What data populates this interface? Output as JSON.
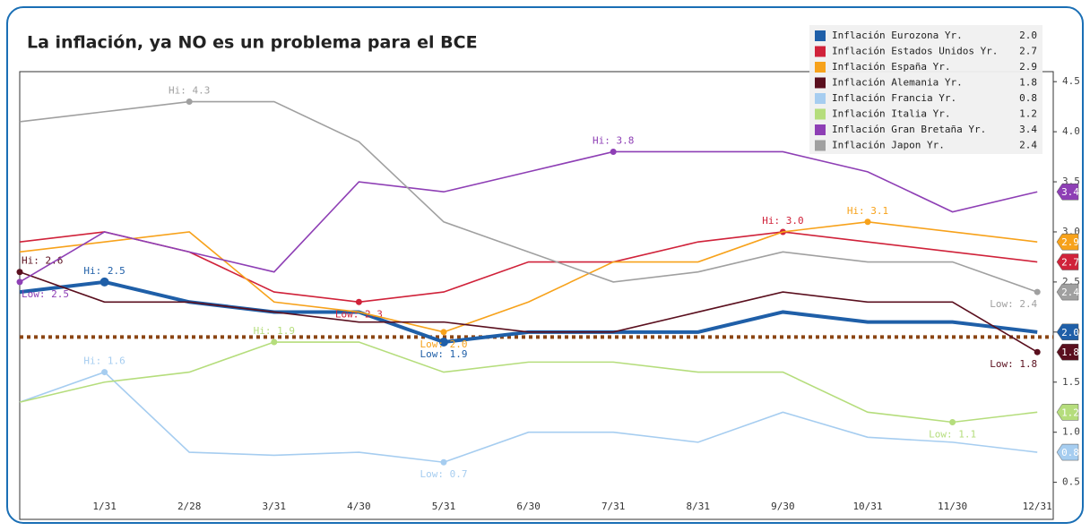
{
  "chart_data": {
    "type": "line",
    "title": "La inflación, ya NO es un problema para el BCE",
    "categories": [
      null,
      "1/31",
      "2/28",
      "3/31",
      "4/30",
      "5/31",
      "6/30",
      "7/31",
      "8/31",
      "9/30",
      "10/31",
      "11/30",
      "12/31"
    ],
    "ylim": [
      0.13,
      4.6
    ],
    "yticks": [
      0.5,
      {
        "value": 1,
        "label": "1.0"
      },
      1.5,
      {
        "value": 2,
        "label": "2.0"
      },
      2.5,
      {
        "value": 3,
        "label": "3.0"
      },
      3.5,
      {
        "value": 4,
        "label": "4.0"
      },
      4.5
    ],
    "target_line": {
      "value": 1.95,
      "color": "#8b4513"
    },
    "legend": "top-right",
    "series": [
      {
        "name": "Inflación Eurozona Yr.",
        "color": "#1f5fa8",
        "values": [
          2.4,
          2.5,
          2.3,
          2.2,
          2.2,
          1.9,
          2.0,
          2.0,
          2.0,
          2.2,
          2.1,
          2.1,
          2.0
        ],
        "value_labels": [
          null,
          "Hi: 2.5",
          null,
          null,
          null,
          "Low: 1.9",
          null,
          null,
          null,
          null,
          null,
          null,
          null
        ],
        "last_label": "2.0"
      },
      {
        "name": "Inflación Estados Unidos Yr.",
        "color": "#d0223a",
        "values": [
          2.9,
          3.0,
          2.8,
          2.4,
          2.3,
          2.4,
          2.7,
          2.7,
          2.9,
          3.0,
          2.9,
          2.8,
          2.7
        ],
        "value_labels": [
          null,
          null,
          null,
          null,
          "Low: 2.3",
          null,
          null,
          null,
          null,
          "Hi: 3.0",
          null,
          null,
          null
        ],
        "last_label": "2.7"
      },
      {
        "name": "Inflación España Yr.",
        "color": "#f7a21b",
        "values": [
          2.8,
          2.9,
          3.0,
          2.3,
          2.2,
          2.0,
          2.3,
          2.7,
          2.7,
          3.0,
          3.1,
          3.0,
          2.9
        ],
        "value_labels": [
          null,
          null,
          null,
          null,
          null,
          "Low: 2.0",
          null,
          null,
          null,
          null,
          "Hi: 3.1",
          null,
          null
        ],
        "last_label": "2.9"
      },
      {
        "name": "Inflación Alemania Yr.",
        "color": "#5a0f1e",
        "values": [
          2.6,
          2.3,
          2.3,
          2.2,
          2.1,
          2.1,
          2.0,
          2.0,
          2.2,
          2.4,
          2.3,
          2.3,
          1.8
        ],
        "value_labels": [
          "Hi: 2.6",
          null,
          null,
          null,
          null,
          null,
          null,
          null,
          null,
          null,
          null,
          null,
          "Low: 1.8"
        ],
        "last_label": "1.8"
      },
      {
        "name": "Inflación Francia Yr.",
        "color": "#a6cdf0",
        "values": [
          1.3,
          1.6,
          0.8,
          0.77,
          0.8,
          0.7,
          1.0,
          1.0,
          0.9,
          1.2,
          0.95,
          0.9,
          0.8
        ],
        "value_labels": [
          null,
          "Hi: 1.6",
          null,
          null,
          null,
          "Low: 0.7",
          null,
          null,
          null,
          null,
          null,
          null,
          null
        ],
        "last_label": "0.8"
      },
      {
        "name": "Inflación Italia Yr.",
        "color": "#b5dd7c",
        "values": [
          1.3,
          1.5,
          1.6,
          1.9,
          1.9,
          1.6,
          1.7,
          1.7,
          1.6,
          1.6,
          1.2,
          1.1,
          1.2
        ],
        "value_labels": [
          null,
          null,
          null,
          "Hi: 1.9",
          null,
          null,
          null,
          null,
          null,
          null,
          null,
          "Low: 1.1",
          null
        ],
        "last_label": "1.2"
      },
      {
        "name": "Inflación Gran Bretaña Yr.",
        "color": "#8e3fb5",
        "values": [
          2.5,
          3.0,
          2.8,
          2.6,
          3.5,
          3.4,
          3.6,
          3.8,
          3.8,
          3.8,
          3.6,
          3.2,
          3.4
        ],
        "value_labels": [
          "Low: 2.5",
          null,
          null,
          null,
          null,
          null,
          null,
          "Hi: 3.8",
          null,
          null,
          null,
          null,
          null
        ],
        "last_label": "3.4"
      },
      {
        "name": "Inflación Japon Yr.",
        "color": "#a0a0a0",
        "values": [
          4.1,
          4.2,
          4.3,
          4.3,
          3.9,
          3.1,
          2.8,
          2.5,
          2.6,
          2.8,
          2.7,
          2.7,
          2.4
        ],
        "value_labels": [
          null,
          null,
          "Hi: 4.3",
          null,
          null,
          null,
          null,
          null,
          null,
          null,
          null,
          null,
          "Low: 2.4"
        ],
        "last_label": "2.4"
      }
    ]
  }
}
